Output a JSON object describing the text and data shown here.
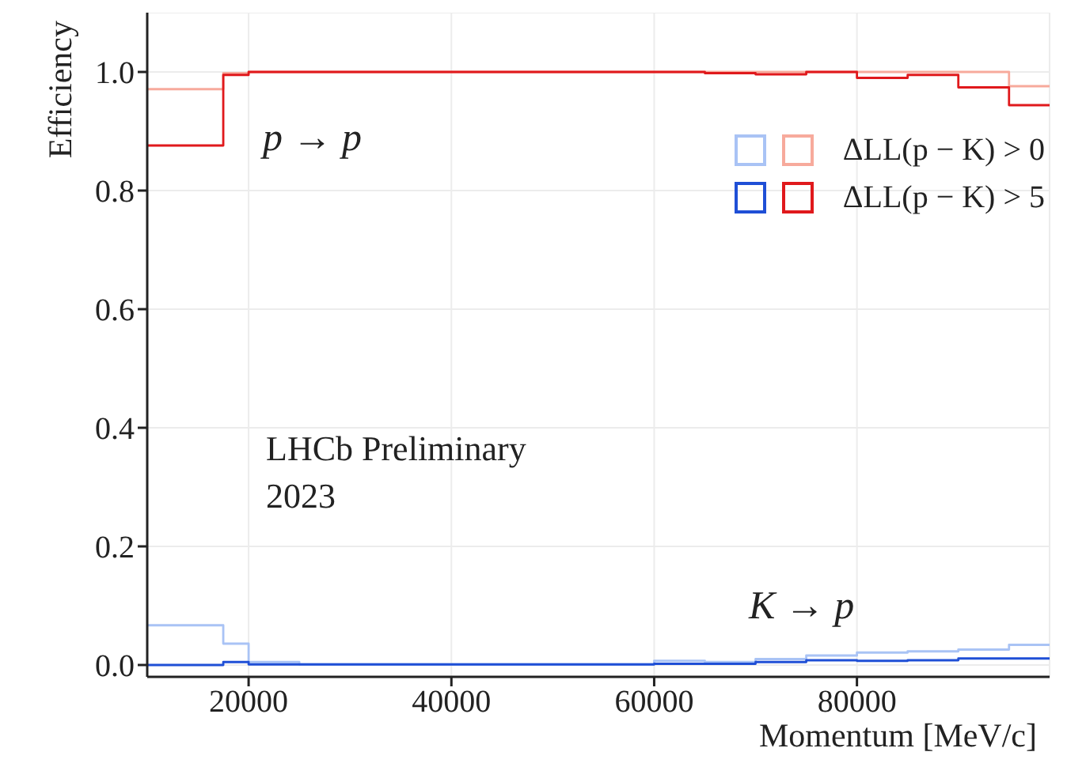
{
  "chart_data": {
    "type": "histogram",
    "xlabel": "Momentum [MeV/c]",
    "ylabel": "Efficiency",
    "bins": [
      10000,
      17500,
      20000,
      25000,
      30000,
      35000,
      40000,
      45000,
      50000,
      55000,
      60000,
      65000,
      70000,
      75000,
      80000,
      85000,
      90000,
      95000,
      100000
    ],
    "series": [
      {
        "color": "#a9c3f5",
        "values": [
          0.067,
          0.036,
          0.005,
          0.001,
          0.001,
          0.001,
          0.001,
          0.001,
          0.001,
          0.001,
          0.007,
          0.005,
          0.01,
          0.016,
          0.021,
          0.023,
          0.026,
          0.034
        ]
      },
      {
        "name": "ΔLL(p − K) > 0",
        "color": "#f7aa9c",
        "values": [
          0.971,
          0.998,
          1.0,
          1.0,
          1.0,
          1.0,
          1.0,
          1.0,
          1.0,
          1.0,
          1.0,
          1.0,
          1.0,
          1.0,
          1.0,
          1.0,
          1.0,
          0.976
        ]
      },
      {
        "color": "#1f4fd6",
        "values": [
          0.0,
          0.005,
          0.001,
          0.001,
          0.001,
          0.001,
          0.001,
          0.001,
          0.001,
          0.001,
          0.002,
          0.002,
          0.005,
          0.008,
          0.007,
          0.008,
          0.011,
          0.011
        ]
      },
      {
        "name": "ΔLL(p − K) > 5",
        "color": "#e0191c",
        "values": [
          0.876,
          0.995,
          1.0,
          1.0,
          1.0,
          1.0,
          1.0,
          1.0,
          1.0,
          1.0,
          1.0,
          0.998,
          0.996,
          1.0,
          0.99,
          0.995,
          0.974,
          0.944
        ]
      }
    ],
    "xlim": [
      10000,
      99000
    ],
    "xticks": [
      20000,
      40000,
      60000,
      80000
    ],
    "ylim": [
      -0.02,
      1.1
    ],
    "yticks": [
      {
        "value": 0,
        "label": "0.0"
      },
      0.2,
      0.4,
      0.6,
      0.8,
      {
        "value": 1,
        "label": "1.0"
      }
    ],
    "grid": true,
    "legend": "top right",
    "annotations": [
      "p → p",
      "K → p",
      "LHCb Preliminary",
      "2023"
    ]
  }
}
